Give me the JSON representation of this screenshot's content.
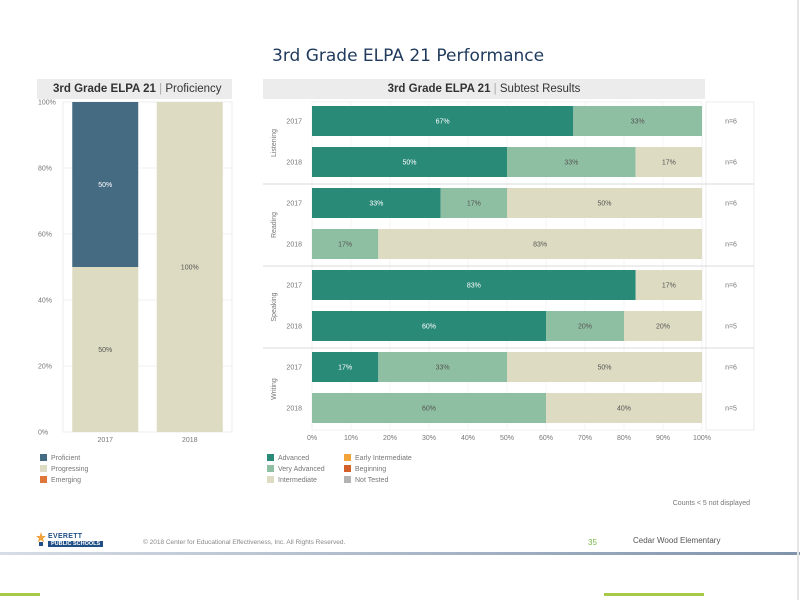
{
  "title": "3rd Grade ELPA 21 Performance",
  "left_panel": {
    "title": "3rd Grade ELPA 21",
    "subtitle": "Proficiency"
  },
  "right_panel": {
    "title": "3rd Grade ELPA 21",
    "subtitle": "Subtest Results"
  },
  "separator": "|",
  "colors": {
    "proficient": "#456b82",
    "progressing": "#dddbc1",
    "emerging": "#e0773a",
    "advanced": "#2a8a78",
    "very_advanced": "#8fbfa2",
    "intermediate": "#dddbc1",
    "early_intermediate": "#f2a33a",
    "beginning": "#d35f2a",
    "not_tested": "#b3b3b3"
  },
  "chart_data": [
    {
      "type": "bar",
      "stacked": true,
      "categories": [
        "2017",
        "2018"
      ],
      "y_ticks": [
        "0%",
        "20%",
        "40%",
        "60%",
        "80%",
        "100%"
      ],
      "ylim": [
        0,
        100
      ],
      "series": [
        {
          "name": "Progressing",
          "values": [
            50,
            100
          ],
          "labels": [
            "50%",
            "100%"
          ]
        },
        {
          "name": "Proficient",
          "values": [
            50,
            0
          ],
          "labels": [
            "50%",
            ""
          ]
        }
      ],
      "legend": [
        "Proficient",
        "Progressing",
        "Emerging"
      ],
      "legend_position": "bottom"
    },
    {
      "type": "bar",
      "orientation": "horizontal",
      "stacked": true,
      "x_ticks": [
        "0%",
        "10%",
        "20%",
        "30%",
        "40%",
        "50%",
        "60%",
        "70%",
        "80%",
        "90%",
        "100%"
      ],
      "xlim": [
        0,
        100
      ],
      "groups": [
        {
          "name": "Listening",
          "rows": [
            {
              "year": "2017",
              "n": "n=6",
              "segments": [
                {
                  "cat": "advanced",
                  "value": 67,
                  "label": "67%"
                },
                {
                  "cat": "very_advanced",
                  "value": 33,
                  "label": "33%"
                }
              ]
            },
            {
              "year": "2018",
              "n": "n=6",
              "segments": [
                {
                  "cat": "advanced",
                  "value": 50,
                  "label": "50%"
                },
                {
                  "cat": "very_advanced",
                  "value": 33,
                  "label": "33%"
                },
                {
                  "cat": "intermediate",
                  "value": 17,
                  "label": "17%"
                }
              ]
            }
          ]
        },
        {
          "name": "Reading",
          "rows": [
            {
              "year": "2017",
              "n": "n=6",
              "segments": [
                {
                  "cat": "advanced",
                  "value": 33,
                  "label": "33%"
                },
                {
                  "cat": "very_advanced",
                  "value": 17,
                  "label": "17%"
                },
                {
                  "cat": "intermediate",
                  "value": 50,
                  "label": "50%"
                }
              ]
            },
            {
              "year": "2018",
              "n": "n=6",
              "segments": [
                {
                  "cat": "very_advanced",
                  "value": 17,
                  "label": "17%"
                },
                {
                  "cat": "intermediate",
                  "value": 83,
                  "label": "83%"
                }
              ]
            }
          ]
        },
        {
          "name": "Speaking",
          "rows": [
            {
              "year": "2017",
              "n": "n=6",
              "segments": [
                {
                  "cat": "advanced",
                  "value": 83,
                  "label": "83%"
                },
                {
                  "cat": "intermediate",
                  "value": 17,
                  "label": "17%"
                }
              ]
            },
            {
              "year": "2018",
              "n": "n=5",
              "segments": [
                {
                  "cat": "advanced",
                  "value": 60,
                  "label": "60%"
                },
                {
                  "cat": "very_advanced",
                  "value": 20,
                  "label": "20%"
                },
                {
                  "cat": "intermediate",
                  "value": 20,
                  "label": "20%"
                }
              ]
            }
          ]
        },
        {
          "name": "Writing",
          "rows": [
            {
              "year": "2017",
              "n": "n=6",
              "segments": [
                {
                  "cat": "advanced",
                  "value": 17,
                  "label": "17%"
                },
                {
                  "cat": "very_advanced",
                  "value": 33,
                  "label": "33%"
                },
                {
                  "cat": "intermediate",
                  "value": 50,
                  "label": "50%"
                }
              ]
            },
            {
              "year": "2018",
              "n": "n=5",
              "segments": [
                {
                  "cat": "very_advanced",
                  "value": 60,
                  "label": "60%"
                },
                {
                  "cat": "intermediate",
                  "value": 40,
                  "label": "40%"
                }
              ]
            }
          ]
        }
      ],
      "legend": [
        {
          "cat": "advanced",
          "label": "Advanced"
        },
        {
          "cat": "very_advanced",
          "label": "Very Advanced"
        },
        {
          "cat": "intermediate",
          "label": "Intermediate"
        },
        {
          "cat": "early_intermediate",
          "label": "Early Intermediate"
        },
        {
          "cat": "beginning",
          "label": "Beginning"
        },
        {
          "cat": "not_tested",
          "label": "Not Tested"
        }
      ],
      "legend_position": "bottom"
    }
  ],
  "footnote": "Counts < 5 not displayed",
  "footer": {
    "logo_line1": "EVERETT",
    "logo_line2": "PUBLIC SCHOOLS",
    "copyright": "© 2018 Center for Educational Effectiveness, Inc. All Rights Reserved.",
    "page_number": "35",
    "school": "Cedar Wood Elementary"
  }
}
